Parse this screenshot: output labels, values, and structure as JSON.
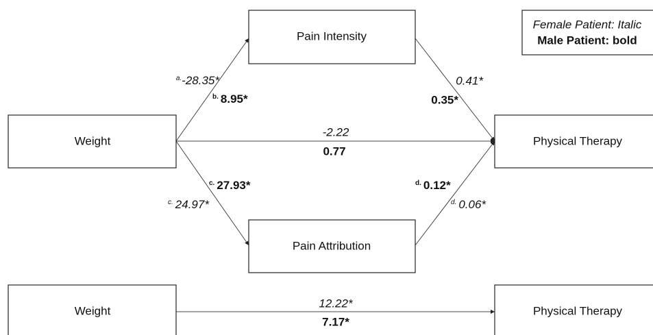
{
  "legend": {
    "female": "Female Patient: Italic",
    "male": "Male Patient: bold"
  },
  "nodes": [
    {
      "label": "Pain Intensity"
    },
    {
      "label": "Weight"
    },
    {
      "label": "Physical Therapy"
    },
    {
      "label": "Pain Attribution"
    },
    {
      "label": "Weight"
    },
    {
      "label": "Physical Therapy"
    }
  ],
  "edges": [
    {
      "female_tag": "a.",
      "female": "-28.35*",
      "male_tag": "b.",
      "male": "8.95*"
    },
    {
      "female": "0.41*",
      "male": "0.35*"
    },
    {
      "female": "-2.22",
      "male": "0.77"
    },
    {
      "female_tag": "c.",
      "female": "24.97*",
      "male_tag": "c.",
      "male": "27.93*"
    },
    {
      "female_tag": "d.",
      "female": "0.06*",
      "male_tag": "d.",
      "male": "0.12*"
    },
    {
      "female": "12.22*",
      "male": "7.17*"
    }
  ]
}
